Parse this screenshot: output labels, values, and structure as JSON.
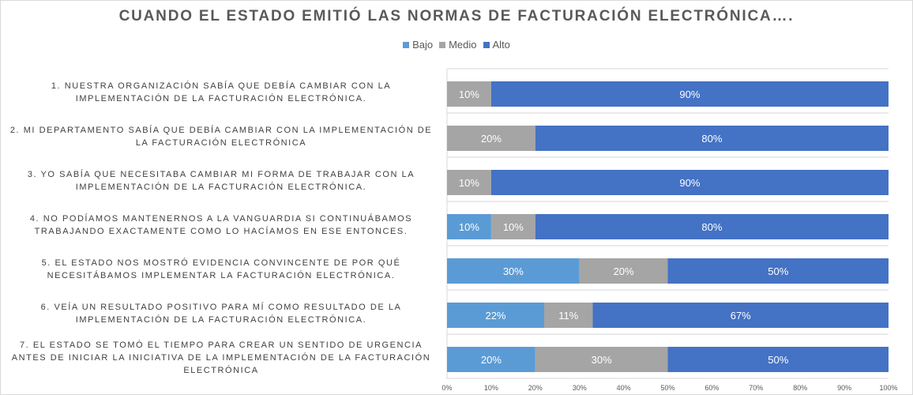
{
  "chart_data": {
    "type": "bar",
    "orientation": "horizontal",
    "stacked": "100%",
    "title": "CUANDO EL ESTADO EMITIÓ LAS NORMAS DE FACTURACIÓN ELECTRÓNICA….",
    "legend_position": "top",
    "categories": [
      "1. NUESTRA ORGANIZACIÓN SABÍA QUE DEBÍA CAMBIAR CON LA IMPLEMENTACIÓN DE LA FACTURACIÓN ELECTRÓNICA.",
      "2. MI DEPARTAMENTO SABÍA QUE DEBÍA CAMBIAR CON LA IMPLEMENTACIÓN DE LA FACTURACIÓN ELECTRÓNICA",
      "3. YO SABÍA QUE NECESITABA CAMBIAR MI FORMA DE TRABAJAR CON LA IMPLEMENTACIÓN DE LA FACTURACIÓN ELECTRÓNICA.",
      "4. NO PODÍAMOS MANTENERNOS A LA VANGUARDIA SI CONTINUÁBAMOS TRABAJANDO EXACTAMENTE COMO LO HACÍAMOS EN ESE ENTONCES.",
      "5. EL ESTADO NOS MOSTRÓ EVIDENCIA CONVINCENTE DE POR QUÉ NECESITÁBAMOS IMPLEMENTAR LA FACTURACIÓN ELECTRÓNICA.",
      "6. VEÍA UN RESULTADO POSITIVO PARA MÍ COMO RESULTADO DE LA IMPLEMENTACIÓN DE LA FACTURACIÓN ELECTRÓNICA.",
      "7. EL ESTADO SE TOMÓ EL TIEMPO PARA CREAR UN SENTIDO DE URGENCIA ANTES DE INICIAR LA INICIATIVA DE LA IMPLEMENTACIÓN DE LA FACTURACIÓN ELECTRÓNICA"
    ],
    "series": [
      {
        "name": "Bajo",
        "color": "#5b9bd5",
        "values": [
          0,
          0,
          0,
          10,
          30,
          22,
          20
        ]
      },
      {
        "name": "Medio",
        "color": "#a5a5a5",
        "values": [
          10,
          20,
          10,
          10,
          20,
          11,
          30
        ]
      },
      {
        "name": "Alto",
        "color": "#4472c4",
        "values": [
          90,
          80,
          90,
          80,
          50,
          67,
          50
        ]
      }
    ],
    "xlim": [
      0,
      100
    ],
    "xticks": [
      "0%",
      "10%",
      "20%",
      "30%",
      "40%",
      "50%",
      "60%",
      "70%",
      "80%",
      "90%",
      "100%"
    ],
    "grid": true
  }
}
